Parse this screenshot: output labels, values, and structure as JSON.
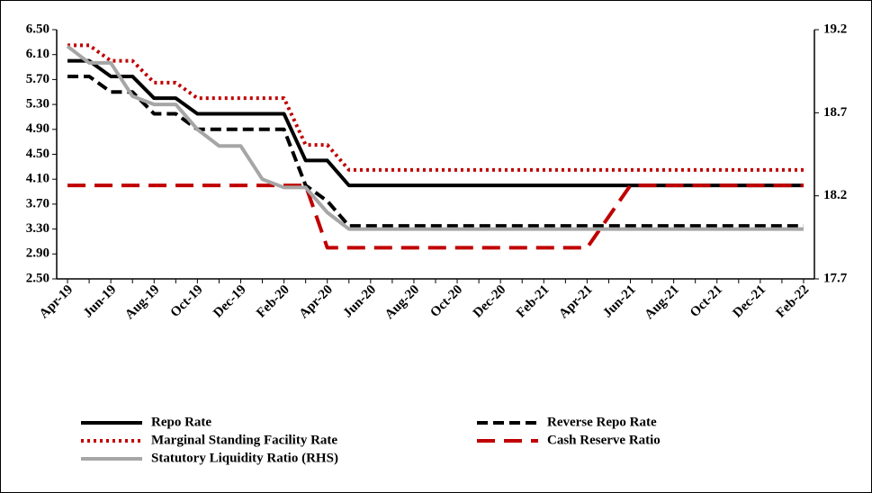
{
  "chart_data": {
    "type": "line",
    "categories": [
      "Apr-19",
      null,
      "Jun-19",
      null,
      "Aug-19",
      null,
      "Oct-19",
      null,
      "Dec-19",
      null,
      "Feb-20",
      null,
      "Apr-20",
      null,
      "Jun-20",
      null,
      "Aug-20",
      null,
      "Oct-20",
      null,
      "Dec-20",
      null,
      "Feb-21",
      null,
      "Apr-21",
      null,
      "Jun-21",
      null,
      "Aug-21",
      null,
      "Oct-21",
      null,
      "Dec-21",
      null,
      "Feb-22"
    ],
    "ylim": [
      2.5,
      6.5
    ],
    "yticks": [
      {
        "value": 2.5,
        "label": "2.50"
      },
      {
        "value": 2.9,
        "label": "2.90"
      },
      {
        "value": 3.3,
        "label": "3.30"
      },
      {
        "value": 3.7,
        "label": "3.70"
      },
      {
        "value": 4.1,
        "label": "4.10"
      },
      {
        "value": 4.5,
        "label": "4.50"
      },
      {
        "value": 4.9,
        "label": "4.90"
      },
      {
        "value": 5.3,
        "label": "5.30"
      },
      {
        "value": 5.7,
        "label": "5.70"
      },
      {
        "value": 6.1,
        "label": "6.10"
      },
      {
        "value": 6.5,
        "label": "6.50"
      }
    ],
    "y2lim": [
      17.7,
      19.2
    ],
    "y2ticks": [
      17.7,
      18.2,
      18.7,
      19.2
    ],
    "series": [
      {
        "name": "Repo Rate",
        "color": "#000000",
        "dash": "solid",
        "values": [
          6.0,
          6.0,
          5.75,
          5.75,
          5.4,
          5.4,
          5.15,
          5.15,
          5.15,
          5.15,
          5.15,
          4.4,
          4.4,
          4.0,
          4.0,
          4.0,
          4.0,
          4.0,
          4.0,
          4.0,
          4.0,
          4.0,
          4.0,
          4.0,
          4.0,
          4.0,
          4.0,
          4.0,
          4.0,
          4.0,
          4.0,
          4.0,
          4.0,
          4.0,
          4.0
        ]
      },
      {
        "name": "Reverse Repo Rate",
        "color": "#000000",
        "dash": "dashed",
        "values": [
          5.75,
          5.75,
          5.5,
          5.5,
          5.15,
          5.15,
          4.9,
          4.9,
          4.9,
          4.9,
          4.9,
          4.0,
          3.75,
          3.35,
          3.35,
          3.35,
          3.35,
          3.35,
          3.35,
          3.35,
          3.35,
          3.35,
          3.35,
          3.35,
          3.35,
          3.35,
          3.35,
          3.35,
          3.35,
          3.35,
          3.35,
          3.35,
          3.35,
          3.35,
          3.35
        ]
      },
      {
        "name": "Marginal Standing Facility Rate",
        "color": "#c00000",
        "dash": "dotted",
        "values": [
          6.25,
          6.25,
          6.0,
          6.0,
          5.65,
          5.65,
          5.4,
          5.4,
          5.4,
          5.4,
          5.4,
          4.65,
          4.65,
          4.25,
          4.25,
          4.25,
          4.25,
          4.25,
          4.25,
          4.25,
          4.25,
          4.25,
          4.25,
          4.25,
          4.25,
          4.25,
          4.25,
          4.25,
          4.25,
          4.25,
          4.25,
          4.25,
          4.25,
          4.25,
          4.25
        ]
      },
      {
        "name": "Cash Reserve Ratio",
        "color": "#c00000",
        "dash": "longdash",
        "values": [
          4.0,
          4.0,
          4.0,
          4.0,
          4.0,
          4.0,
          4.0,
          4.0,
          4.0,
          4.0,
          4.0,
          4.0,
          3.0,
          3.0,
          3.0,
          3.0,
          3.0,
          3.0,
          3.0,
          3.0,
          3.0,
          3.0,
          3.0,
          3.0,
          3.0,
          3.5,
          4.0,
          4.0,
          4.0,
          4.0,
          4.0,
          4.0,
          4.0,
          4.0,
          4.0
        ]
      },
      {
        "name": "Statutory Liquidity Ratio (RHS)",
        "color": "#a6a6a6",
        "dash": "solid",
        "axis": "y2",
        "values": [
          19.1,
          19.0,
          19.0,
          18.8,
          18.75,
          18.75,
          18.6,
          18.5,
          18.5,
          18.3,
          18.25,
          18.25,
          18.1,
          18.0,
          18.0,
          18.0,
          18.0,
          18.0,
          18.0,
          18.0,
          18.0,
          18.0,
          18.0,
          18.0,
          18.0,
          18.0,
          18.0,
          18.0,
          18.0,
          18.0,
          18.0,
          18.0,
          18.0,
          18.0,
          18.0
        ]
      }
    ]
  }
}
